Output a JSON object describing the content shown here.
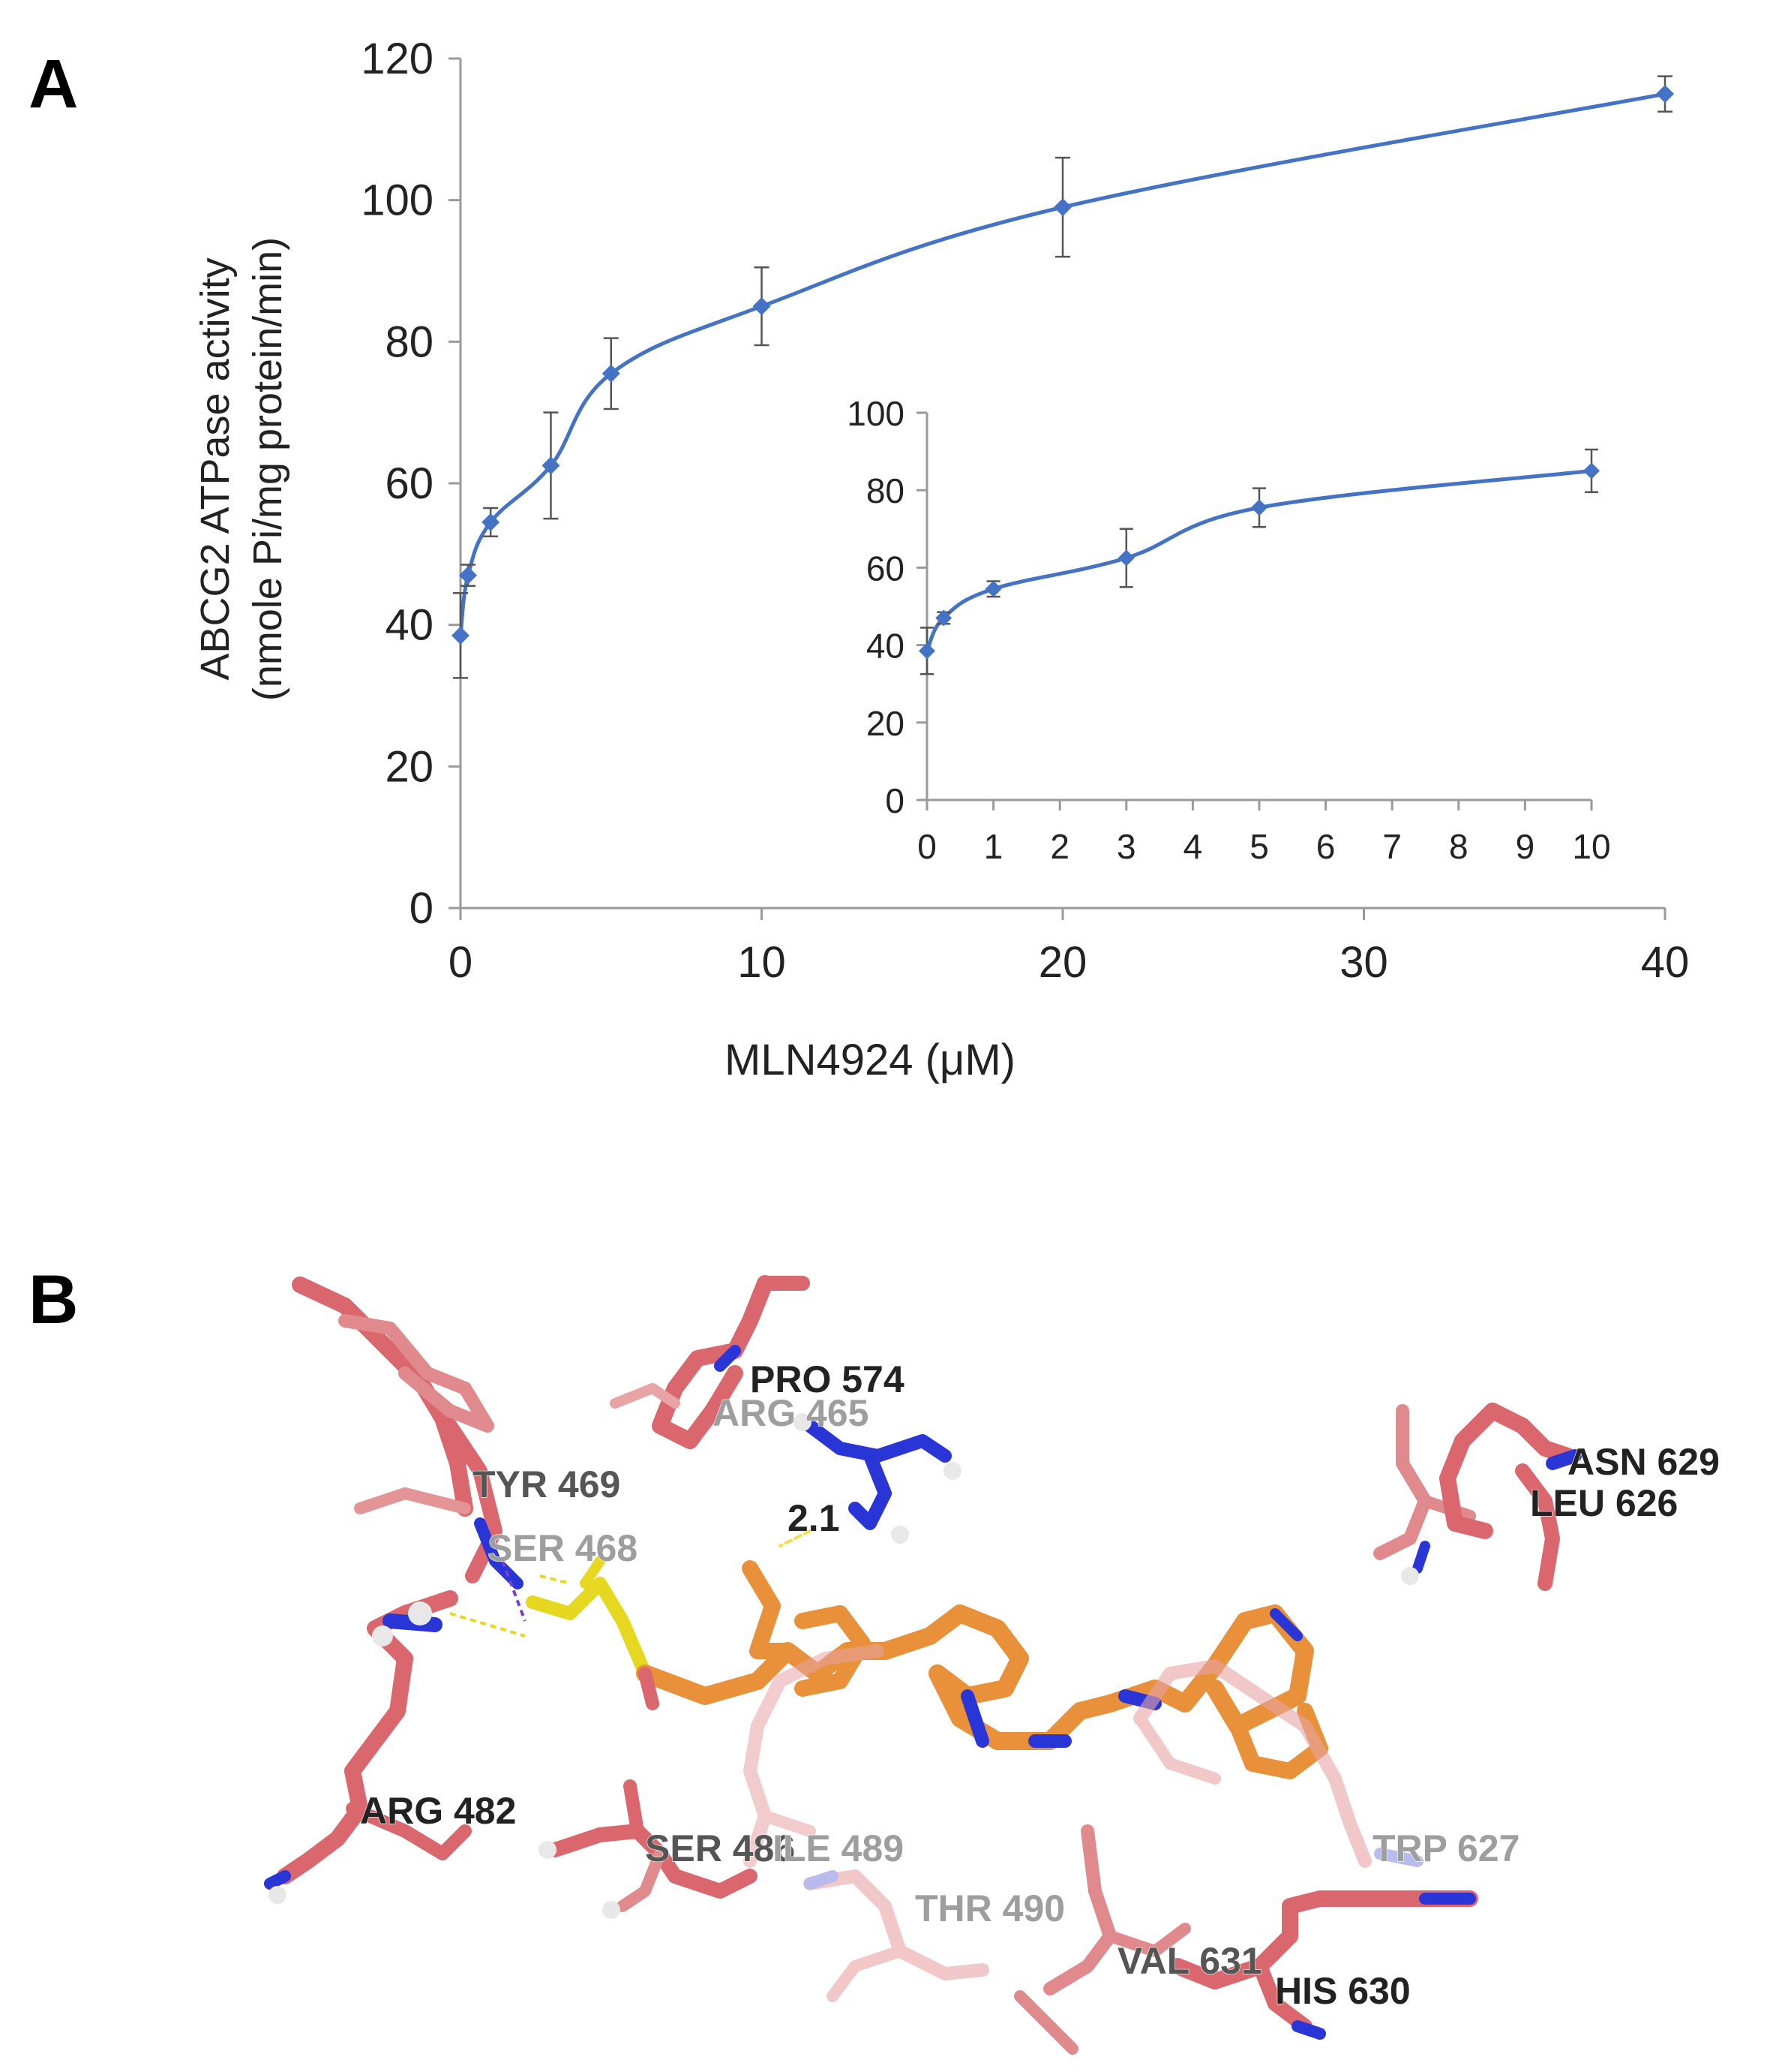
{
  "panel_a": {
    "letter": "A"
  },
  "panel_b": {
    "letter": "B",
    "residue_labels": [
      {
        "text": "PRO  574",
        "shade": "dark"
      },
      {
        "text": "ARG  465",
        "shade": "faded"
      },
      {
        "text": "TYR  469",
        "shade": "mid"
      },
      {
        "text": "SER  468",
        "shade": "faded"
      },
      {
        "text": "2.1",
        "shade": "dark"
      },
      {
        "text": "ASN  629",
        "shade": "dark"
      },
      {
        "text": "LEU  626",
        "shade": "dark"
      },
      {
        "text": "ARG  482",
        "shade": "dark"
      },
      {
        "text": "SER  486",
        "shade": "mid"
      },
      {
        "text": "ILE  489",
        "shade": "faded"
      },
      {
        "text": "THR  490",
        "shade": "faded"
      },
      {
        "text": "TRP  627",
        "shade": "faded"
      },
      {
        "text": "VAL  631",
        "shade": "mid"
      },
      {
        "text": "HIS  630",
        "shade": "dark"
      }
    ],
    "colors": {
      "residue": "#d9676d",
      "ligand": "#e8913a",
      "nitrogen": "#2a35d6",
      "sulfur": "#e6d820",
      "hydrogen": "#e8e8e8"
    }
  },
  "chart_data": [
    {
      "type": "line",
      "title": "",
      "xlabel": "MLN4924 (μM)",
      "ylabel": [
        "ABCG2 ATPase activity",
        "(nmole Pi/mg protein/min)"
      ],
      "xlim": [
        0,
        40
      ],
      "ylim": [
        0,
        120
      ],
      "x_ticks": [
        0,
        10,
        20,
        30,
        40
      ],
      "y_ticks": [
        0,
        20,
        40,
        60,
        80,
        100,
        120
      ],
      "color": "#4472c4",
      "grid": false,
      "legend": "none",
      "series": [
        {
          "x": [
            0,
            0.25,
            1,
            3,
            5,
            10,
            20,
            40
          ],
          "y": [
            38.5,
            47,
            54.5,
            62.5,
            75.5,
            85,
            99,
            115
          ],
          "error": [
            6,
            1.5,
            2,
            7.5,
            5,
            5.5,
            7,
            2.5
          ]
        }
      ]
    },
    {
      "type": "line",
      "title": "",
      "inset": true,
      "xlabel": "",
      "ylabel": "",
      "x_categories": [
        "0",
        "1",
        "2",
        "3",
        "4",
        "5",
        "6",
        "7",
        "8",
        "9",
        "10"
      ],
      "ylim": [
        0,
        100
      ],
      "y_ticks": [
        0,
        20,
        40,
        60,
        80,
        100
      ],
      "color": "#4472c4",
      "grid": false,
      "legend": "none",
      "series": [
        {
          "x": [
            0,
            0.25,
            1,
            3,
            5,
            10
          ],
          "x_positions": [
            0,
            0.25,
            1,
            3,
            5,
            10
          ],
          "y": [
            38.5,
            47,
            54.5,
            62.5,
            75.5,
            85
          ],
          "error": [
            6,
            1.5,
            2,
            7.5,
            5,
            5.5
          ]
        }
      ]
    }
  ]
}
